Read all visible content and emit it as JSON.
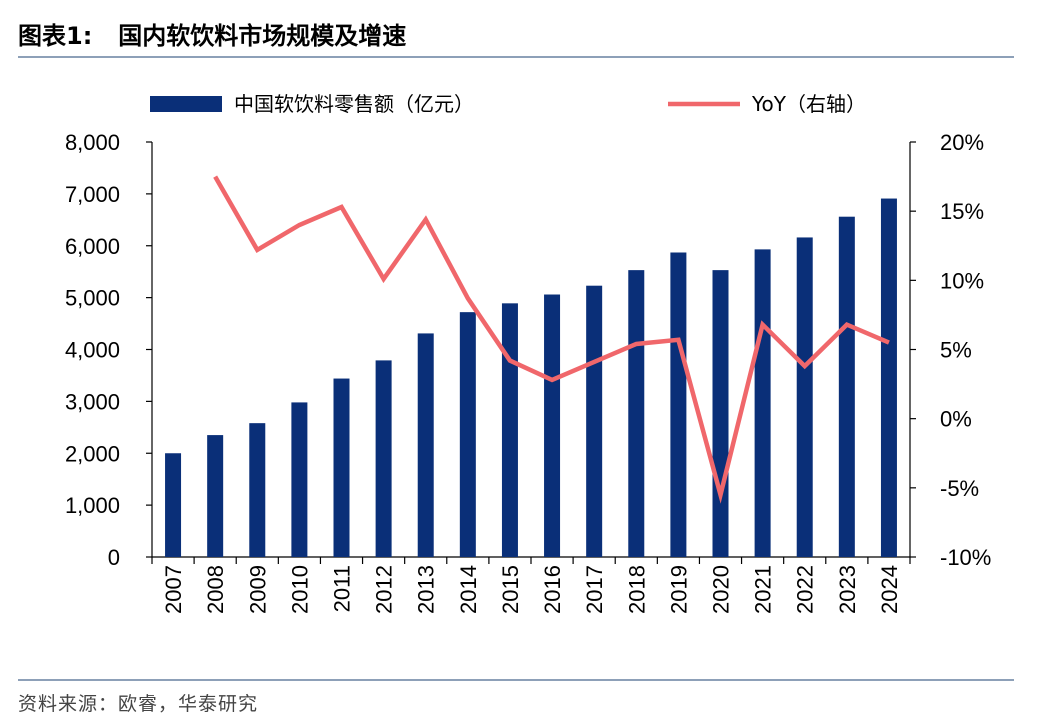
{
  "header": {
    "figure_label": "图表1:",
    "title": "国内软饮料市场规模及增速"
  },
  "footer": {
    "source": "资料来源：欧睿，华泰研究"
  },
  "colors": {
    "bar": "#0a2f78",
    "line": "#f0676b",
    "rule": "#8da0b8"
  },
  "chart_data": {
    "type": "bar",
    "categories": [
      "2007",
      "2008",
      "2009",
      "2010",
      "2011",
      "2012",
      "2013",
      "2014",
      "2015",
      "2016",
      "2017",
      "2018",
      "2019",
      "2020",
      "2021",
      "2022",
      "2023",
      "2024"
    ],
    "series": [
      {
        "name": "中国软饮料零售额（亿元）",
        "type": "bar",
        "axis": "left",
        "values": [
          2000,
          2350,
          2580,
          2980,
          3440,
          3790,
          4310,
          4720,
          4890,
          5060,
          5230,
          5530,
          5870,
          5530,
          5930,
          6160,
          6560,
          6910
        ]
      },
      {
        "name": "YoY（右轴）",
        "type": "line",
        "axis": "right",
        "values": [
          null,
          0.175,
          0.122,
          0.14,
          0.153,
          0.101,
          0.144,
          0.087,
          0.042,
          0.028,
          0.041,
          0.054,
          0.057,
          -0.055,
          0.068,
          0.038,
          0.068,
          0.055
        ]
      }
    ],
    "y_left": {
      "min": 0,
      "max": 8000,
      "ticks": [
        "0",
        "1,000",
        "2,000",
        "3,000",
        "4,000",
        "5,000",
        "6,000",
        "7,000",
        "8,000"
      ]
    },
    "y_right": {
      "min": -0.1,
      "max": 0.2,
      "ticks": [
        "-10%",
        "-5%",
        "0%",
        "5%",
        "10%",
        "15%",
        "20%"
      ]
    },
    "legend": {
      "placement": "top"
    },
    "grid": false
  }
}
